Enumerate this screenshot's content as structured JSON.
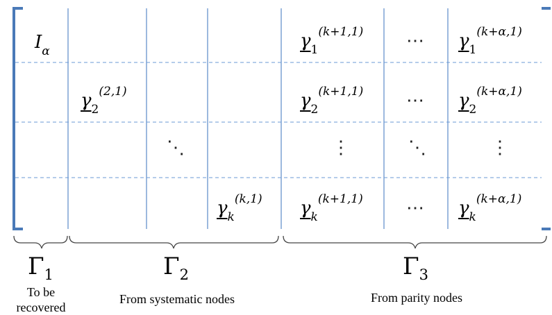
{
  "matrix": {
    "row1": {
      "c1": {
        "base": "I",
        "sub": "α"
      },
      "p1": {
        "base": "γ",
        "sub": "1",
        "sup": "(k+1,1)"
      },
      "pdots": "⋯",
      "p2": {
        "base": "γ",
        "sub": "1",
        "sup": "(k+α,1)"
      }
    },
    "row2": {
      "c2": {
        "base": "γ",
        "sub": "2",
        "sup": "(2,1)"
      },
      "p1": {
        "base": "γ",
        "sub": "2",
        "sup": "(k+1,1)"
      },
      "pdots": "⋯",
      "p2": {
        "base": "γ",
        "sub": "2",
        "sup": "(k+α,1)"
      }
    },
    "row3": {
      "ddots": "⋱",
      "p1": "⋮",
      "pdots": "⋱",
      "p2": "⋮"
    },
    "row4": {
      "c4": {
        "base": "γ",
        "sub": "k",
        "sup": "(k,1)"
      },
      "p1": {
        "base": "γ",
        "sub": "k",
        "sup": "(k+1,1)"
      },
      "pdots": "⋯",
      "p2": {
        "base": "γ",
        "sub": "k",
        "sup": "(k+α,1)"
      }
    }
  },
  "groups": [
    {
      "symbol": "Γ",
      "sub": "1",
      "caption_line1": "To be",
      "caption_line2": "recovered"
    },
    {
      "symbol": "Γ",
      "sub": "2",
      "caption": "From systematic nodes"
    },
    {
      "symbol": "Γ",
      "sub": "3",
      "caption": "From parity nodes"
    }
  ],
  "colors": {
    "bracket": "#4a7ab8",
    "divider": "#5b8ac8",
    "dashed": "#6a9ad6",
    "brace": "#444444"
  }
}
